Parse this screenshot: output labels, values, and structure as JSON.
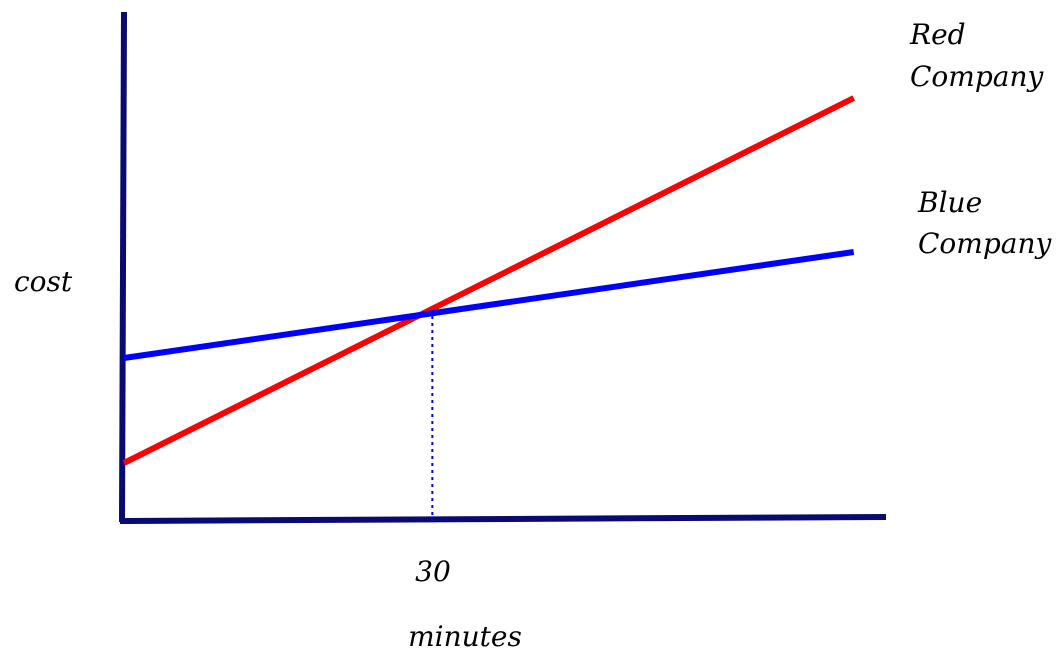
{
  "chart_data": {
    "type": "line",
    "title": "",
    "xlabel": "minutes",
    "ylabel": "cost",
    "x_ticks": [
      {
        "value": 30,
        "label": "30"
      }
    ],
    "xlim": [
      0,
      72
    ],
    "ylim": [
      0,
      50
    ],
    "grid": false,
    "axis_color": "#0a0a73",
    "series": [
      {
        "name_lines": [
          "Red",
          "Company"
        ],
        "color": "#ff0000",
        "x": [
          0,
          71
        ],
        "y": [
          5.8,
          42.3
        ]
      },
      {
        "name_lines": [
          "Blue",
          "Company"
        ],
        "color": "#0000ff",
        "x": [
          0,
          71
        ],
        "y": [
          16.3,
          26.9
        ]
      }
    ],
    "annotations": [
      {
        "type": "vertical-dotted-line",
        "x": 30,
        "y_from": 0,
        "y_to": 21.2,
        "color": "#0000ff"
      }
    ]
  }
}
